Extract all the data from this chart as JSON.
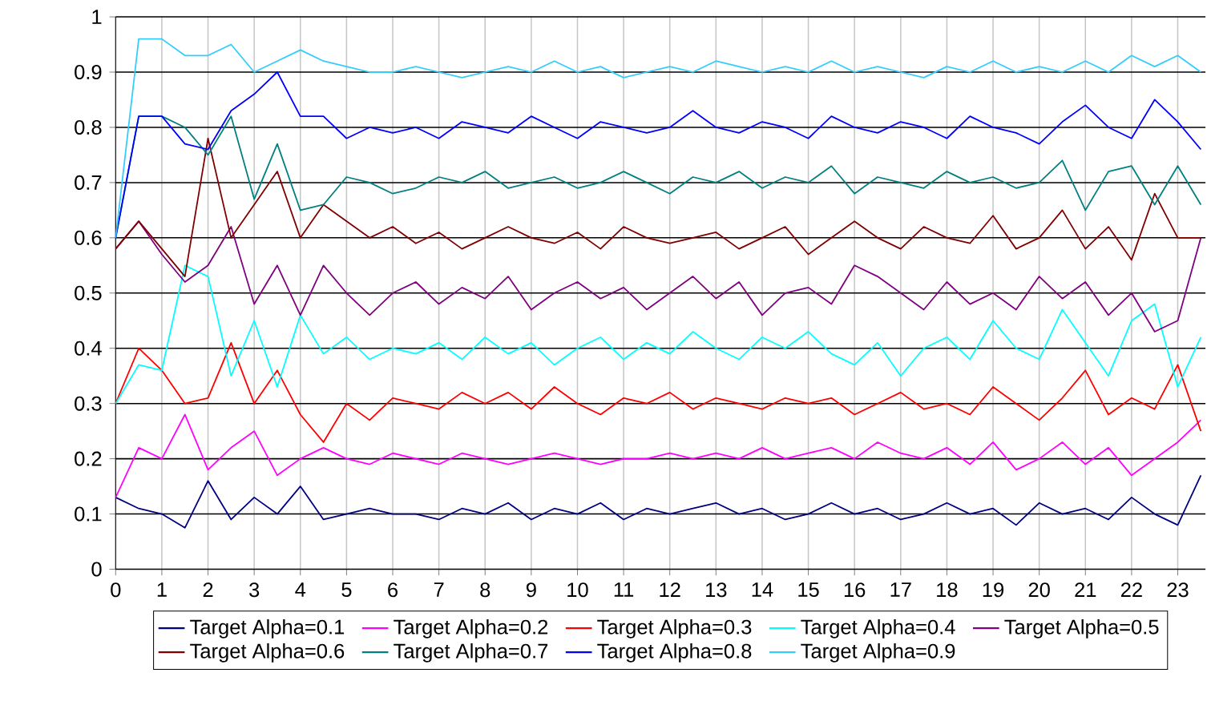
{
  "chart_data": {
    "type": "line",
    "x": [
      0,
      0.5,
      1,
      1.5,
      2,
      2.5,
      3,
      3.5,
      4,
      4.5,
      5,
      5.5,
      6,
      6.5,
      7,
      7.5,
      8,
      8.5,
      9,
      9.5,
      10,
      10.5,
      11,
      11.5,
      12,
      12.5,
      13,
      13.5,
      14,
      14.5,
      15,
      15.5,
      16,
      16.5,
      17,
      17.5,
      18,
      18.5,
      19,
      19.5,
      20,
      20.5,
      21,
      21.5,
      22,
      22.5,
      23,
      23.5
    ],
    "series": [
      {
        "name": "Target Alpha=0.1",
        "color": "#000080",
        "values": [
          0.13,
          0.11,
          0.1,
          0.075,
          0.16,
          0.09,
          0.13,
          0.1,
          0.15,
          0.09,
          0.1,
          0.11,
          0.1,
          0.1,
          0.09,
          0.11,
          0.1,
          0.12,
          0.09,
          0.11,
          0.1,
          0.12,
          0.09,
          0.11,
          0.1,
          0.11,
          0.12,
          0.1,
          0.11,
          0.09,
          0.1,
          0.12,
          0.1,
          0.11,
          0.09,
          0.1,
          0.12,
          0.1,
          0.11,
          0.08,
          0.12,
          0.1,
          0.11,
          0.09,
          0.13,
          0.1,
          0.08,
          0.17
        ]
      },
      {
        "name": "Target Alpha=0.2",
        "color": "#ff00ff",
        "values": [
          0.13,
          0.22,
          0.2,
          0.28,
          0.18,
          0.22,
          0.25,
          0.17,
          0.2,
          0.22,
          0.2,
          0.19,
          0.21,
          0.2,
          0.19,
          0.21,
          0.2,
          0.19,
          0.2,
          0.21,
          0.2,
          0.19,
          0.2,
          0.2,
          0.21,
          0.2,
          0.21,
          0.2,
          0.22,
          0.2,
          0.21,
          0.22,
          0.2,
          0.23,
          0.21,
          0.2,
          0.22,
          0.19,
          0.23,
          0.18,
          0.2,
          0.23,
          0.19,
          0.22,
          0.17,
          0.2,
          0.23,
          0.27
        ]
      },
      {
        "name": "Target Alpha=0.3",
        "color": "#ff0000",
        "values": [
          0.3,
          0.4,
          0.36,
          0.3,
          0.31,
          0.41,
          0.3,
          0.36,
          0.28,
          0.23,
          0.3,
          0.27,
          0.31,
          0.3,
          0.29,
          0.32,
          0.3,
          0.32,
          0.29,
          0.33,
          0.3,
          0.28,
          0.31,
          0.3,
          0.32,
          0.29,
          0.31,
          0.3,
          0.29,
          0.31,
          0.3,
          0.31,
          0.28,
          0.3,
          0.32,
          0.29,
          0.3,
          0.28,
          0.33,
          0.3,
          0.27,
          0.31,
          0.36,
          0.28,
          0.31,
          0.29,
          0.37,
          0.25
        ]
      },
      {
        "name": "Target Alpha=0.4",
        "color": "#00ffff",
        "values": [
          0.3,
          0.37,
          0.36,
          0.55,
          0.53,
          0.35,
          0.45,
          0.33,
          0.46,
          0.39,
          0.42,
          0.38,
          0.4,
          0.39,
          0.41,
          0.38,
          0.42,
          0.39,
          0.41,
          0.37,
          0.4,
          0.42,
          0.38,
          0.41,
          0.39,
          0.43,
          0.4,
          0.38,
          0.42,
          0.4,
          0.43,
          0.39,
          0.37,
          0.41,
          0.35,
          0.4,
          0.42,
          0.38,
          0.45,
          0.4,
          0.38,
          0.47,
          0.41,
          0.35,
          0.45,
          0.48,
          0.33,
          0.42
        ]
      },
      {
        "name": "Target Alpha=0.5",
        "color": "#800080",
        "values": [
          0.58,
          0.63,
          0.57,
          0.52,
          0.55,
          0.62,
          0.48,
          0.55,
          0.46,
          0.55,
          0.5,
          0.46,
          0.5,
          0.52,
          0.48,
          0.51,
          0.49,
          0.53,
          0.47,
          0.5,
          0.52,
          0.49,
          0.51,
          0.47,
          0.5,
          0.53,
          0.49,
          0.52,
          0.46,
          0.5,
          0.51,
          0.48,
          0.55,
          0.53,
          0.5,
          0.47,
          0.52,
          0.48,
          0.5,
          0.47,
          0.53,
          0.49,
          0.52,
          0.46,
          0.5,
          0.43,
          0.45,
          0.6
        ]
      },
      {
        "name": "Target Alpha=0.6",
        "color": "#800000",
        "values": [
          0.58,
          0.63,
          0.58,
          0.53,
          0.78,
          0.6,
          0.66,
          0.72,
          0.6,
          0.66,
          0.63,
          0.6,
          0.62,
          0.59,
          0.61,
          0.58,
          0.6,
          0.62,
          0.6,
          0.59,
          0.61,
          0.58,
          0.62,
          0.6,
          0.59,
          0.6,
          0.61,
          0.58,
          0.6,
          0.62,
          0.57,
          0.6,
          0.63,
          0.6,
          0.58,
          0.62,
          0.6,
          0.59,
          0.64,
          0.58,
          0.6,
          0.65,
          0.58,
          0.62,
          0.56,
          0.68,
          0.6,
          0.6
        ]
      },
      {
        "name": "Target Alpha=0.7",
        "color": "#008080",
        "values": [
          0.6,
          0.82,
          0.82,
          0.8,
          0.75,
          0.82,
          0.67,
          0.77,
          0.65,
          0.66,
          0.71,
          0.7,
          0.68,
          0.69,
          0.71,
          0.7,
          0.72,
          0.69,
          0.7,
          0.71,
          0.69,
          0.7,
          0.72,
          0.7,
          0.68,
          0.71,
          0.7,
          0.72,
          0.69,
          0.71,
          0.7,
          0.73,
          0.68,
          0.71,
          0.7,
          0.69,
          0.72,
          0.7,
          0.71,
          0.69,
          0.7,
          0.74,
          0.65,
          0.72,
          0.73,
          0.66,
          0.73,
          0.66
        ]
      },
      {
        "name": "Target Alpha=0.8",
        "color": "#0000ff",
        "values": [
          0.6,
          0.82,
          0.82,
          0.77,
          0.76,
          0.83,
          0.86,
          0.9,
          0.82,
          0.82,
          0.78,
          0.8,
          0.79,
          0.8,
          0.78,
          0.81,
          0.8,
          0.79,
          0.82,
          0.8,
          0.78,
          0.81,
          0.8,
          0.79,
          0.8,
          0.83,
          0.8,
          0.79,
          0.81,
          0.8,
          0.78,
          0.82,
          0.8,
          0.79,
          0.81,
          0.8,
          0.78,
          0.82,
          0.8,
          0.79,
          0.77,
          0.81,
          0.84,
          0.8,
          0.78,
          0.85,
          0.81,
          0.76
        ]
      },
      {
        "name": "Target Alpha=0.9",
        "color": "#33ccff",
        "values": [
          0.6,
          0.96,
          0.96,
          0.93,
          0.93,
          0.95,
          0.9,
          0.92,
          0.94,
          0.92,
          0.91,
          0.9,
          0.9,
          0.91,
          0.9,
          0.89,
          0.9,
          0.91,
          0.9,
          0.92,
          0.9,
          0.91,
          0.89,
          0.9,
          0.91,
          0.9,
          0.92,
          0.91,
          0.9,
          0.91,
          0.9,
          0.92,
          0.9,
          0.91,
          0.9,
          0.89,
          0.91,
          0.9,
          0.92,
          0.9,
          0.91,
          0.9,
          0.92,
          0.9,
          0.93,
          0.91,
          0.93,
          0.9
        ]
      }
    ],
    "xlim": [
      0,
      23.6
    ],
    "ylim": [
      0,
      1
    ],
    "xticks": [
      0,
      1,
      2,
      3,
      4,
      5,
      6,
      7,
      8,
      9,
      10,
      11,
      12,
      13,
      14,
      15,
      16,
      17,
      18,
      19,
      20,
      21,
      22,
      23
    ],
    "yticks": [
      0,
      0.1,
      0.2,
      0.3,
      0.4,
      0.5,
      0.6,
      0.7,
      0.8,
      0.9,
      1
    ],
    "grid": true,
    "legend": "bottom"
  }
}
